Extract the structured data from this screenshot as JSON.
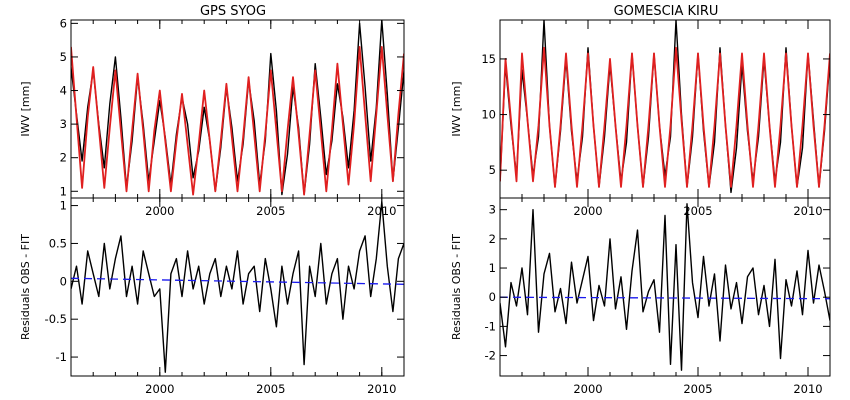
{
  "chart_data": [
    {
      "type": "line",
      "title": "GPS SYOG",
      "ylabel": "IWV [mm]",
      "xlim": [
        1996,
        2011
      ],
      "ylim": [
        0.8,
        6.1
      ],
      "xticks": [
        2000,
        2005,
        2010
      ],
      "yticks": [
        1,
        2,
        3,
        4,
        5,
        6
      ],
      "series": [
        {
          "color": "#000000",
          "x": [
            1996.0,
            1996.25,
            1996.5,
            1996.75,
            1997.0,
            1997.25,
            1997.5,
            1997.75,
            1998.0,
            1998.25,
            1998.5,
            1998.75,
            1999.0,
            1999.25,
            1999.5,
            1999.75,
            2000.0,
            2000.25,
            2000.5,
            2000.75,
            2001.0,
            2001.25,
            2001.5,
            2001.75,
            2002.0,
            2002.25,
            2002.5,
            2002.75,
            2003.0,
            2003.25,
            2003.5,
            2003.75,
            2004.0,
            2004.25,
            2004.5,
            2004.75,
            2005.0,
            2005.25,
            2005.5,
            2005.75,
            2006.0,
            2006.25,
            2006.5,
            2006.75,
            2007.0,
            2007.25,
            2007.5,
            2007.75,
            2008.0,
            2008.25,
            2008.5,
            2008.75,
            2009.0,
            2009.25,
            2009.5,
            2009.75,
            2010.0,
            2010.25,
            2010.5,
            2010.75,
            2011.0
          ],
          "values": [
            4.7,
            3.3,
            1.9,
            3.5,
            4.6,
            3.0,
            1.7,
            3.6,
            5.0,
            3.2,
            1.1,
            2.5,
            4.4,
            3.0,
            1.3,
            2.5,
            3.7,
            2.6,
            1.2,
            2.7,
            3.8,
            3.0,
            1.4,
            2.2,
            3.5,
            2.5,
            1.0,
            2.3,
            4.1,
            2.9,
            1.3,
            2.4,
            4.3,
            3.1,
            1.2,
            2.5,
            5.1,
            3.4,
            0.9,
            2.1,
            4.1,
            2.9,
            0.9,
            2.4,
            4.8,
            3.2,
            1.5,
            2.5,
            4.2,
            3.2,
            1.7,
            3.4,
            6.0,
            4.1,
            1.9,
            3.5,
            6.1,
            3.9,
            1.3,
            2.9,
            4.6
          ]
        },
        {
          "color": "#e02020",
          "x": [
            1996.0,
            1996.25,
            1996.5,
            1996.75,
            1997.0,
            1997.25,
            1997.5,
            1997.75,
            1998.0,
            1998.25,
            1998.5,
            1998.75,
            1999.0,
            1999.25,
            1999.5,
            1999.75,
            2000.0,
            2000.25,
            2000.5,
            2000.75,
            2001.0,
            2001.25,
            2001.5,
            2001.75,
            2002.0,
            2002.25,
            2002.5,
            2002.75,
            2003.0,
            2003.25,
            2003.5,
            2003.75,
            2004.0,
            2004.25,
            2004.5,
            2004.75,
            2005.0,
            2005.25,
            2005.5,
            2005.75,
            2006.0,
            2006.25,
            2006.5,
            2006.75,
            2007.0,
            2007.25,
            2007.5,
            2007.75,
            2008.0,
            2008.25,
            2008.5,
            2008.75,
            2009.0,
            2009.25,
            2009.5,
            2009.75,
            2010.0,
            2010.25,
            2010.5,
            2010.75,
            2011.0
          ],
          "values": [
            5.3,
            3.2,
            1.1,
            3.2,
            4.7,
            2.9,
            1.1,
            2.9,
            4.6,
            2.8,
            1.0,
            2.8,
            4.5,
            2.8,
            1.0,
            2.8,
            4.0,
            2.5,
            1.0,
            2.5,
            3.9,
            2.4,
            0.9,
            2.4,
            4.0,
            2.5,
            1.0,
            2.5,
            4.2,
            2.6,
            1.0,
            2.6,
            4.4,
            2.7,
            1.0,
            2.7,
            4.6,
            2.8,
            1.0,
            2.8,
            4.4,
            2.7,
            0.9,
            2.7,
            4.6,
            2.8,
            1.0,
            2.8,
            4.8,
            3.0,
            1.2,
            3.0,
            5.3,
            3.3,
            1.3,
            3.3,
            5.3,
            3.3,
            1.3,
            3.3,
            5.1
          ]
        }
      ]
    },
    {
      "type": "line",
      "title": "GOMESCIA KIRU",
      "ylabel": "IWV [mm]",
      "xlim": [
        1996,
        2011
      ],
      "ylim": [
        2.5,
        18.5
      ],
      "xticks": [
        2000,
        2005,
        2010
      ],
      "yticks": [
        5,
        10,
        15
      ],
      "series": [
        {
          "color": "#000000",
          "x": [
            1996.0,
            1996.25,
            1996.5,
            1996.75,
            1997.0,
            1997.25,
            1997.5,
            1997.75,
            1998.0,
            1998.25,
            1998.5,
            1998.75,
            1999.0,
            1999.25,
            1999.5,
            1999.75,
            2000.0,
            2000.25,
            2000.5,
            2000.75,
            2001.0,
            2001.25,
            2001.5,
            2001.75,
            2002.0,
            2002.25,
            2002.5,
            2002.75,
            2003.0,
            2003.25,
            2003.5,
            2003.75,
            2004.0,
            2004.25,
            2004.5,
            2004.75,
            2005.0,
            2005.25,
            2005.5,
            2005.75,
            2006.0,
            2006.25,
            2006.5,
            2006.75,
            2007.0,
            2007.25,
            2007.5,
            2007.75,
            2008.0,
            2008.25,
            2008.5,
            2008.75,
            2009.0,
            2009.25,
            2009.5,
            2009.75,
            2010.0,
            2010.25,
            2010.5,
            2010.75,
            2011.0
          ],
          "values": [
            4.0,
            14.5,
            9.0,
            4.5,
            14.0,
            9.5,
            4.5,
            8.0,
            18.5,
            9.0,
            3.5,
            8.5,
            15.0,
            8.5,
            4.0,
            8.0,
            16.0,
            9.0,
            3.5,
            8.0,
            14.5,
            9.0,
            4.0,
            7.5,
            15.5,
            9.0,
            3.5,
            8.0,
            15.5,
            9.0,
            4.5,
            8.0,
            18.5,
            10.0,
            3.5,
            8.0,
            15.5,
            8.5,
            3.5,
            7.5,
            16.0,
            9.0,
            3.0,
            7.0,
            14.5,
            8.5,
            4.0,
            8.0,
            15.0,
            9.0,
            4.0,
            7.5,
            16.0,
            9.0,
            3.5,
            7.0,
            15.5,
            9.5,
            3.5,
            8.5,
            15.0
          ]
        },
        {
          "color": "#e02020",
          "x": [
            1996.0,
            1996.25,
            1996.5,
            1996.75,
            1997.0,
            1997.25,
            1997.5,
            1997.75,
            1998.0,
            1998.25,
            1998.5,
            1998.75,
            1999.0,
            1999.25,
            1999.5,
            1999.75,
            2000.0,
            2000.25,
            2000.5,
            2000.75,
            2001.0,
            2001.25,
            2001.5,
            2001.75,
            2002.0,
            2002.25,
            2002.5,
            2002.75,
            2003.0,
            2003.25,
            2003.5,
            2003.75,
            2004.0,
            2004.25,
            2004.5,
            2004.75,
            2005.0,
            2005.25,
            2005.5,
            2005.75,
            2006.0,
            2006.25,
            2006.5,
            2006.75,
            2007.0,
            2007.25,
            2007.5,
            2007.75,
            2008.0,
            2008.25,
            2008.5,
            2008.75,
            2009.0,
            2009.25,
            2009.5,
            2009.75,
            2010.0,
            2010.25,
            2010.5,
            2010.75,
            2011.0
          ],
          "values": [
            4.0,
            15.0,
            9.5,
            4.0,
            15.5,
            9.5,
            4.0,
            9.0,
            16.0,
            9.0,
            3.5,
            9.0,
            15.5,
            9.0,
            3.5,
            9.0,
            15.5,
            9.0,
            3.5,
            9.0,
            15.0,
            9.0,
            3.5,
            9.0,
            15.5,
            9.0,
            3.5,
            9.0,
            15.5,
            9.0,
            3.5,
            9.0,
            16.0,
            9.5,
            3.5,
            9.0,
            15.5,
            9.0,
            3.5,
            9.0,
            15.5,
            9.0,
            3.5,
            9.0,
            15.5,
            9.0,
            3.5,
            9.0,
            15.5,
            9.0,
            3.5,
            9.0,
            15.5,
            9.0,
            3.5,
            9.0,
            15.5,
            9.0,
            3.5,
            9.0,
            15.5
          ]
        }
      ]
    },
    {
      "type": "line",
      "ylabel": "Residuals OBS - FIT",
      "xlim": [
        1996,
        2011
      ],
      "ylim": [
        -1.25,
        1.1
      ],
      "xticks": [
        2000,
        2005,
        2010
      ],
      "yticks": [
        -1.0,
        -0.5,
        0.0,
        0.5,
        1.0
      ],
      "series": [
        {
          "color": "#000000",
          "x": [
            1996.0,
            1996.25,
            1996.5,
            1996.75,
            1997.0,
            1997.25,
            1997.5,
            1997.75,
            1998.0,
            1998.25,
            1998.5,
            1998.75,
            1999.0,
            1999.25,
            1999.5,
            1999.75,
            2000.0,
            2000.25,
            2000.5,
            2000.75,
            2001.0,
            2001.25,
            2001.5,
            2001.75,
            2002.0,
            2002.25,
            2002.5,
            2002.75,
            2003.0,
            2003.25,
            2003.5,
            2003.75,
            2004.0,
            2004.25,
            2004.5,
            2004.75,
            2005.0,
            2005.25,
            2005.5,
            2005.75,
            2006.0,
            2006.25,
            2006.5,
            2006.75,
            2007.0,
            2007.25,
            2007.5,
            2007.75,
            2008.0,
            2008.25,
            2008.5,
            2008.75,
            2009.0,
            2009.25,
            2009.5,
            2009.75,
            2010.0,
            2010.25,
            2010.5,
            2010.75,
            2011.0
          ],
          "values": [
            -0.1,
            0.2,
            -0.3,
            0.4,
            0.1,
            -0.2,
            0.5,
            -0.1,
            0.3,
            0.6,
            -0.2,
            0.2,
            -0.3,
            0.4,
            0.1,
            -0.2,
            -0.1,
            -1.2,
            0.1,
            0.3,
            -0.2,
            0.4,
            -0.1,
            0.2,
            -0.3,
            0.1,
            0.3,
            -0.2,
            0.2,
            -0.1,
            0.4,
            -0.3,
            0.1,
            0.2,
            -0.4,
            0.3,
            -0.1,
            -0.6,
            0.2,
            -0.3,
            0.1,
            0.4,
            -1.1,
            0.2,
            -0.2,
            0.5,
            -0.3,
            0.1,
            0.3,
            -0.5,
            0.2,
            -0.1,
            0.4,
            0.6,
            -0.2,
            0.3,
            1.05,
            0.2,
            -0.4,
            0.3,
            0.5
          ]
        },
        {
          "color": "#1a1aee",
          "dashed": true,
          "x": [
            1996.0,
            2011.0
          ],
          "values": [
            0.04,
            -0.04
          ]
        }
      ]
    },
    {
      "type": "line",
      "ylabel": "Residuals OBS - FIT",
      "xlim": [
        1996,
        2011
      ],
      "ylim": [
        -2.7,
        3.4
      ],
      "xticks": [
        2000,
        2005,
        2010
      ],
      "yticks": [
        -2,
        -1,
        0,
        1,
        2,
        3
      ],
      "series": [
        {
          "color": "#000000",
          "x": [
            1996.0,
            1996.25,
            1996.5,
            1996.75,
            1997.0,
            1997.25,
            1997.5,
            1997.75,
            1998.0,
            1998.25,
            1998.5,
            1998.75,
            1999.0,
            1999.25,
            1999.5,
            1999.75,
            2000.0,
            2000.25,
            2000.5,
            2000.75,
            2001.0,
            2001.25,
            2001.5,
            2001.75,
            2002.0,
            2002.25,
            2002.5,
            2002.75,
            2003.0,
            2003.25,
            2003.5,
            2003.75,
            2004.0,
            2004.25,
            2004.5,
            2004.75,
            2005.0,
            2005.25,
            2005.5,
            2005.75,
            2006.0,
            2006.25,
            2006.5,
            2006.75,
            2007.0,
            2007.25,
            2007.5,
            2007.75,
            2008.0,
            2008.25,
            2008.5,
            2008.75,
            2009.0,
            2009.25,
            2009.5,
            2009.75,
            2010.0,
            2010.25,
            2010.5,
            2010.75,
            2011.0
          ],
          "values": [
            -0.2,
            -1.7,
            0.5,
            -0.3,
            1.0,
            -0.6,
            3.0,
            -1.2,
            0.8,
            1.5,
            -0.5,
            0.3,
            -0.9,
            1.2,
            -0.2,
            0.6,
            1.4,
            -0.8,
            0.4,
            -0.3,
            2.0,
            -0.4,
            0.7,
            -1.1,
            0.9,
            2.3,
            -0.5,
            0.2,
            0.6,
            -1.2,
            2.8,
            -2.3,
            1.8,
            -2.5,
            3.2,
            0.5,
            -0.7,
            1.4,
            -0.3,
            0.8,
            -1.5,
            1.1,
            -0.4,
            0.5,
            -0.9,
            0.7,
            1.0,
            -0.6,
            0.4,
            -1.0,
            1.3,
            -2.1,
            0.6,
            -0.3,
            0.9,
            -0.6,
            1.6,
            -0.2,
            1.1,
            0.2,
            -0.8
          ]
        },
        {
          "color": "#1a1aee",
          "dashed": true,
          "x": [
            1996.0,
            2011.0
          ],
          "values": [
            0.0,
            -0.05
          ]
        }
      ]
    }
  ]
}
